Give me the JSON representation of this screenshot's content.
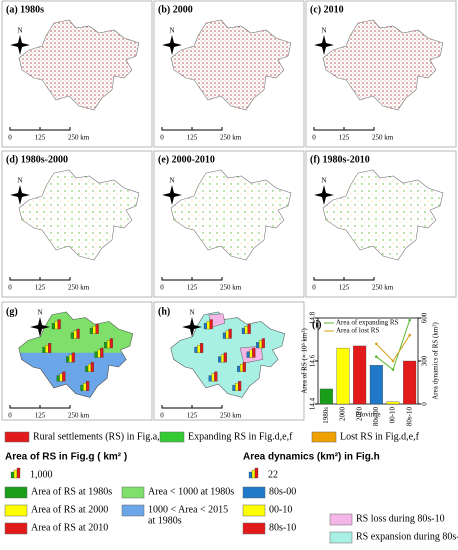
{
  "panels": [
    "(a) 1980s",
    "(b) 2000",
    "(c) 2010",
    "(d) 1980s-2000",
    "(e) 2000-2010",
    "(f) 1980s-2010",
    "(g)",
    "(h)"
  ],
  "north": "N",
  "scale": [
    "0",
    "125",
    "250 km"
  ],
  "chart_data": {
    "type": "bar",
    "label": "(i)",
    "categories": [
      "1980s",
      "2000",
      "2010",
      "80s-00",
      "00-10",
      "80s-10"
    ],
    "xlabel": "Province",
    "ylabel": "Area of RS (× 10³ km²)",
    "y2label": "Area dynamics of RS (km²)",
    "ylim": [
      14.4,
      14.8
    ],
    "yticks": [
      14.4,
      14.6,
      14.8
    ],
    "y2lim": [
      0,
      600
    ],
    "y2ticks": [
      0,
      300,
      600
    ],
    "values": [
      14.47,
      14.66,
      14.67,
      270,
      15,
      300
    ],
    "axes": [
      "y",
      "y",
      "y",
      "y2",
      "y2",
      "y2"
    ],
    "colors": [
      "#1a9e1a",
      "#ffff00",
      "#e31a1c",
      "#1f78c8",
      "#ffff00",
      "#e31a1c"
    ],
    "series": [
      {
        "name": "Area of expanding RS",
        "color": "#5cb82e",
        "axis": "y2",
        "values": [
          null,
          null,
          null,
          330,
          240,
          585
        ]
      },
      {
        "name": "Area of lost RS",
        "color": "#d4a017",
        "axis": "y2",
        "values": [
          null,
          null,
          null,
          420,
          300,
          480
        ]
      }
    ]
  },
  "legend_top": [
    {
      "color": "#e31a1c",
      "label": "Rural settlements (RS) in Fig.a,b,c"
    },
    {
      "color": "#33cc33",
      "label": "Expanding RS in Fig.d,e,f"
    },
    {
      "color": "#f0a000",
      "label": "Lost RS in Fig.d,e,f"
    }
  ],
  "legend_g": {
    "title": "Area of RS in Fig.g ( km² )",
    "scale": "1,000",
    "items": [
      {
        "color": "#1a9e1a",
        "lines": [
          "Area of RS at 1980s"
        ]
      },
      {
        "color": "#ffff00",
        "lines": [
          "Area of RS at 2000"
        ]
      },
      {
        "color": "#e31a1c",
        "lines": [
          "Area of RS at 2010"
        ]
      },
      {
        "color": "#7ee06a",
        "lines": [
          "Area < 1000 at 1980s"
        ]
      },
      {
        "color": "#6aa6e8",
        "lines": [
          "1000 < Area < 2015",
          "at 1980s"
        ]
      }
    ]
  },
  "legend_h": {
    "title": "Area dynamics (km²) in Fig.h",
    "scale": "22",
    "items": [
      {
        "color": "#1f78c8",
        "lines": [
          "80s-00"
        ]
      },
      {
        "color": "#ffff00",
        "lines": [
          "00-10"
        ]
      },
      {
        "color": "#e31a1c",
        "lines": [
          "80s-10"
        ]
      },
      {
        "color": "#f4b6e6",
        "lines": [
          "RS loss during 80s-10"
        ]
      },
      {
        "color": "#a8f0e4",
        "lines": [
          "RS expansion during 80s-10"
        ]
      }
    ]
  }
}
